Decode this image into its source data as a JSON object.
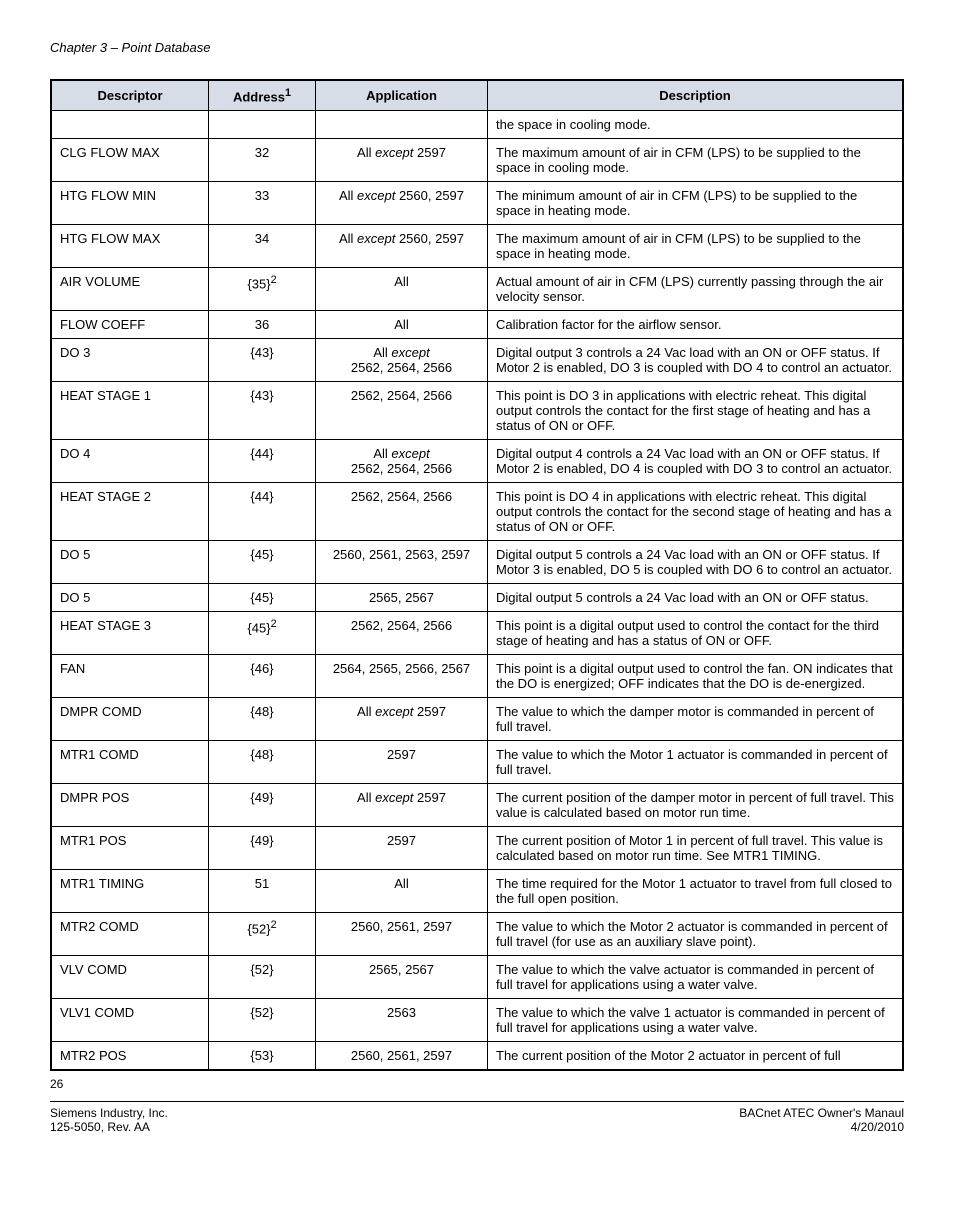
{
  "chapter_header": "Chapter 3 – Point Database",
  "columns": {
    "descriptor": "Descriptor",
    "address": "Address",
    "address_sup": "1",
    "application": "Application",
    "description": "Description"
  },
  "rows": [
    {
      "descriptor": "",
      "address": "",
      "application": "",
      "description": "the space in cooling mode."
    },
    {
      "descriptor": "CLG FLOW MAX",
      "address": "32",
      "app_prefix": "All ",
      "app_italic": "except",
      "app_suffix": " 2597",
      "description": "The maximum amount of air in CFM (LPS) to be supplied to the space in cooling mode."
    },
    {
      "descriptor": "HTG FLOW MIN",
      "address": "33",
      "app_prefix": "All ",
      "app_italic": "except",
      "app_suffix": " 2560, 2597",
      "description": "The minimum amount of air in CFM (LPS) to be supplied to the space in heating mode."
    },
    {
      "descriptor": "HTG FLOW MAX",
      "address": "34",
      "app_prefix": "All ",
      "app_italic": "except",
      "app_suffix": " 2560, 2597",
      "description": "The maximum amount of air in CFM (LPS) to be supplied to the space in heating mode."
    },
    {
      "descriptor": "AIR VOLUME",
      "address": "{35}",
      "address_sup": "2",
      "application": "All",
      "description": "Actual amount of air in CFM (LPS) currently passing through the air velocity sensor."
    },
    {
      "descriptor": "FLOW COEFF",
      "address": "36",
      "application": "All",
      "description": "Calibration factor for the airflow sensor."
    },
    {
      "descriptor": "DO 3",
      "address": "{43}",
      "app_prefix": "All ",
      "app_italic": "except",
      "app_suffix": "\n2562, 2564, 2566",
      "description": "Digital output 3 controls a 24 Vac load with an ON or OFF status. If Motor 2 is enabled, DO 3 is coupled with DO 4 to control an actuator."
    },
    {
      "descriptor": "HEAT STAGE 1",
      "address": "{43}",
      "application": "2562, 2564, 2566",
      "description": "This point is DO 3 in applications with electric reheat. This digital output controls the contact for the first stage of heating and has a status of ON or OFF."
    },
    {
      "descriptor": "DO 4",
      "address": "{44}",
      "app_prefix": "All ",
      "app_italic": "except",
      "app_suffix": "\n2562, 2564, 2566",
      "description": "Digital output 4 controls a 24 Vac load with an ON or OFF status. If Motor 2 is enabled, DO 4 is coupled with DO 3 to control an actuator."
    },
    {
      "descriptor": "HEAT STAGE 2",
      "address": "{44}",
      "application": "2562, 2564, 2566",
      "description": "This point is DO 4 in applications with electric reheat. This digital output controls the contact for the second stage of heating and has a status of ON or OFF."
    },
    {
      "descriptor": "DO 5",
      "address": "{45}",
      "application": "2560, 2561, 2563, 2597",
      "description": "Digital output 5 controls a 24 Vac load with an ON or OFF status. If Motor 3 is enabled, DO 5 is coupled with DO 6 to control an actuator."
    },
    {
      "descriptor": "DO 5",
      "address": "{45}",
      "application": "2565, 2567",
      "description": "Digital output 5 controls a 24 Vac load with an ON or OFF status."
    },
    {
      "descriptor": "HEAT STAGE 3",
      "address": "{45}",
      "address_sup": "2",
      "application": "2562, 2564, 2566",
      "description": "This point is a digital output used to control the contact for the third stage of heating and has a status of ON or OFF."
    },
    {
      "descriptor": "FAN",
      "address": "{46}",
      "application": "2564, 2565, 2566, 2567",
      "description": "This point is a digital output used to control the fan. ON indicates that the DO is energized; OFF indicates that the DO is de-energized."
    },
    {
      "descriptor": "DMPR COMD",
      "address": "{48}",
      "app_prefix": "All ",
      "app_italic": "except",
      "app_suffix": " 2597",
      "description": "The value to which the damper motor is commanded in percent of full travel."
    },
    {
      "descriptor": "MTR1 COMD",
      "address": "{48}",
      "application": "2597",
      "description": "The value to which the Motor 1 actuator is commanded in percent of full travel."
    },
    {
      "descriptor": "DMPR POS",
      "address": "{49}",
      "app_prefix": "All ",
      "app_italic": "except",
      "app_suffix": " 2597",
      "description": "The current position of the damper motor in percent of full travel. This value is calculated based on motor run time."
    },
    {
      "descriptor": "MTR1 POS",
      "address": "{49}",
      "application": "2597",
      "description": "The current position of Motor 1 in percent of full travel. This value is calculated based on motor run time. See MTR1 TIMING."
    },
    {
      "descriptor": "MTR1 TIMING",
      "address": "51",
      "application": "All",
      "description": "The time required for the Motor 1 actuator to travel from full closed to the full open position."
    },
    {
      "descriptor": "MTR2 COMD",
      "address": "{52}",
      "address_sup": "2",
      "application": "2560, 2561, 2597",
      "description": "The value to which the Motor 2 actuator is commanded in percent of full travel (for use as an auxiliary slave point)."
    },
    {
      "descriptor": "VLV COMD",
      "address": "{52}",
      "application": "2565, 2567",
      "description": "The value to which the valve actuator is commanded in percent of full travel for applications using a water valve."
    },
    {
      "descriptor": "VLV1 COMD",
      "address": "{52}",
      "application": "2563",
      "description": "The value to which the valve 1 actuator is commanded in percent of full travel for applications using a water valve."
    },
    {
      "descriptor": "MTR2 POS",
      "address": "{53}",
      "application": "2560, 2561, 2597",
      "description": "The current position of the Motor 2 actuator in percent of full"
    }
  ],
  "page_number": "26",
  "footer": {
    "left1": "Siemens Industry, Inc.",
    "left2": "125-5050, Rev. AA",
    "right1": "BACnet ATEC Owner's Manaul",
    "right2": "4/20/2010"
  }
}
